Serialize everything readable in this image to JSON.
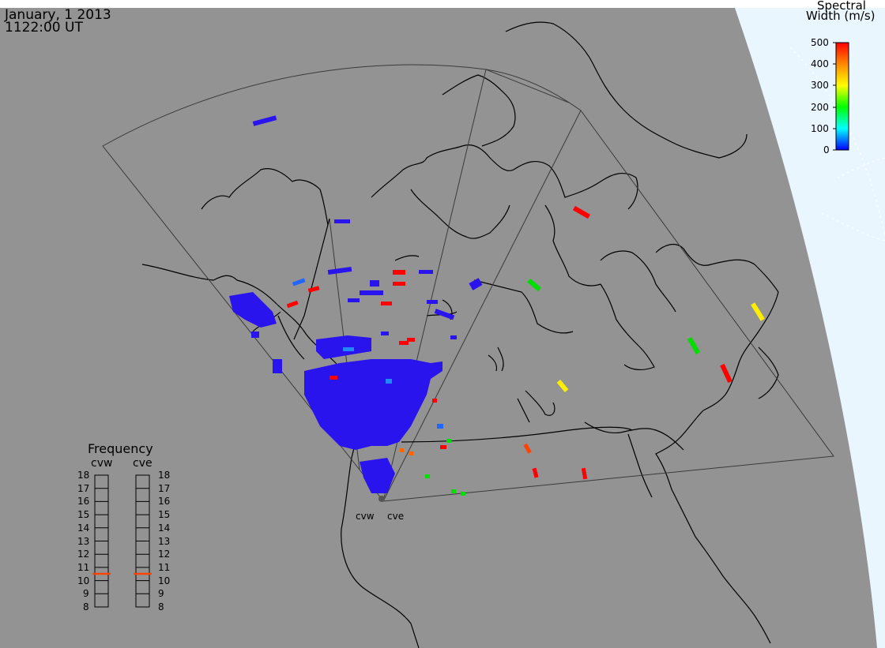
{
  "header": {
    "date": "January, 1 2013",
    "time": "1122:00 UT"
  },
  "colorbar": {
    "title_line1": "Spectral",
    "title_line2": "Width (m/s)",
    "ticks": [
      "500",
      "400",
      "300",
      "200",
      "100",
      "0"
    ],
    "colors": [
      "#ff0000",
      "#ff8800",
      "#ffff00",
      "#00ff00",
      "#00ffff",
      "#0000ff"
    ]
  },
  "colors": {
    "background": "#939393",
    "space": "#eaf6fd",
    "coastline": "#000000",
    "radar_fov": "#3a3a3a",
    "freq_marker": "#ff4400",
    "blue_echo": "#2a14ee"
  },
  "frequency_panel": {
    "title": "Frequency",
    "radars": [
      "cvw",
      "cve"
    ],
    "ticks": [
      "18",
      "17",
      "16",
      "15",
      "14",
      "13",
      "12",
      "11",
      "10",
      "9",
      "8"
    ],
    "cvw_value": "10.6",
    "cve_value": "10.6"
  },
  "radar_labels": {
    "cvw": "cvw",
    "cve": "cve"
  }
}
